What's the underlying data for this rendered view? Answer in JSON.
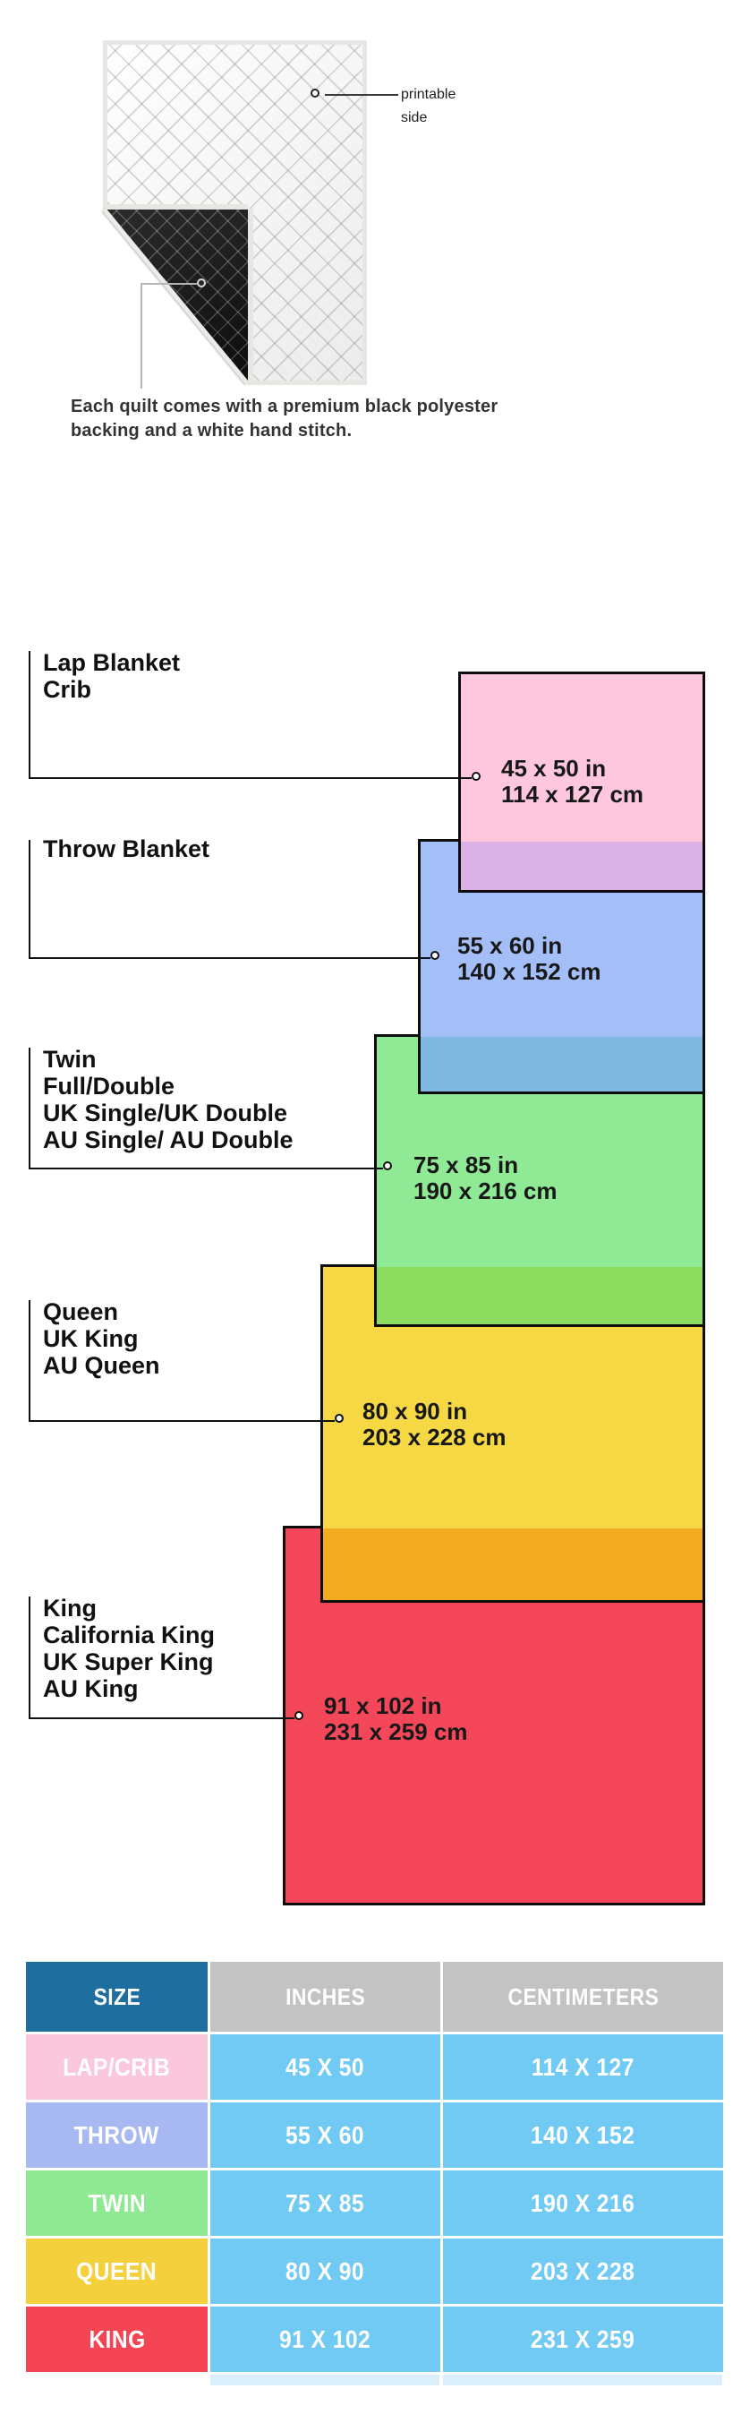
{
  "hero": {
    "printable_label": "printable side",
    "caption_line1": "Each quilt comes with a premium black polyester",
    "caption_line2": "backing and a white hand stitch."
  },
  "diagram": {
    "blocks": [
      {
        "id": "lap",
        "labels": [
          "Lap Blanket",
          "Crib"
        ],
        "size_in": "45 x 50 in",
        "size_cm": "114 x 127 cm",
        "fill": "#FFC7DE"
      },
      {
        "id": "throw",
        "labels": [
          "Throw Blanket"
        ],
        "size_in": "55 x 60 in",
        "size_cm": "140 x 152 cm",
        "fill": "#A4BFF8"
      },
      {
        "id": "twin",
        "labels": [
          "Twin",
          "Full/Double",
          "UK Single/UK Double",
          "AU Single/ AU Double"
        ],
        "size_in": "75 x 85 in",
        "size_cm": "190 x 216 cm",
        "fill": "#90EA95"
      },
      {
        "id": "queen",
        "labels": [
          "Queen",
          "UK King",
          "AU Queen"
        ],
        "size_in": "80 x 90 in",
        "size_cm": "203 x 228 cm",
        "fill": "#F5D843"
      },
      {
        "id": "king",
        "labels": [
          "King",
          "California King",
          "UK Super King",
          "AU King"
        ],
        "size_in": "91 x 102 in",
        "size_cm": "231 x 259 cm",
        "fill": "#F4485A"
      }
    ],
    "overlap_colors": {
      "pink_over_blue": "#DBB2E5",
      "blue_over_green": "#7FB9E2",
      "green_over_yellow": "#8BDC5F",
      "yellow_over_red": "#F3AC1F"
    }
  },
  "table": {
    "headers": [
      "SIZE",
      "INCHES",
      "CENTIMETERS"
    ],
    "header_colors": {
      "size": "#1E6E9F",
      "other": "#C3C3C3"
    },
    "value_bg": "#70CAF4",
    "rows": [
      {
        "size": "LAP/CRIB",
        "inches": "45 X 50",
        "cm": "114 X 127",
        "color": "#FAC8DD"
      },
      {
        "size": "THROW",
        "inches": "55 X 60",
        "cm": "140 X 152",
        "color": "#A8B8F2"
      },
      {
        "size": "TWIN",
        "inches": "75 X 85",
        "cm": "190 X 216",
        "color": "#8FE992"
      },
      {
        "size": "QUEEN",
        "inches": "80 X 90",
        "cm": "203 X 228",
        "color": "#F3D03C"
      },
      {
        "size": "KING",
        "inches": "91 X 102",
        "cm": "231 X 259",
        "color": "#F54454"
      }
    ]
  }
}
